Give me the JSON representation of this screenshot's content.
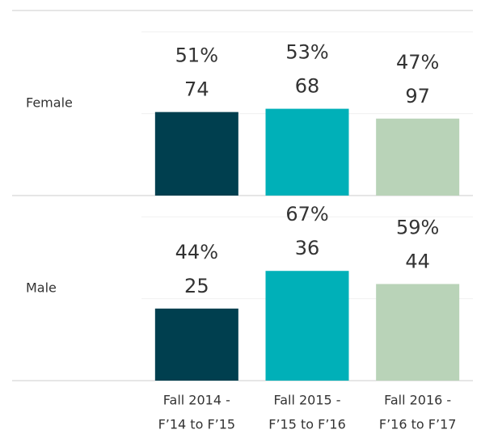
{
  "chart_data": {
    "type": "bar",
    "rows": [
      "Female",
      "Male"
    ],
    "categories": [
      [
        "Fall 2014 -",
        "F’14 to F’15"
      ],
      [
        "Fall 2015 -",
        "F’15 to F’16"
      ],
      [
        "Fall 2016 -",
        "F’16 to F’17"
      ]
    ],
    "colors": [
      "#003f4f",
      "#00b0b8",
      "#b9d3b8"
    ],
    "series": [
      {
        "name": "Female",
        "values": [
          51,
          53,
          47
        ],
        "value_labels": [
          "51%",
          "53%",
          "47%"
        ],
        "counts": [
          74,
          68,
          97
        ]
      },
      {
        "name": "Male",
        "values": [
          44,
          67,
          59
        ],
        "value_labels": [
          "44%",
          "67%",
          "59%"
        ],
        "counts": [
          25,
          36,
          44
        ]
      }
    ],
    "ylim": [
      0,
      113
    ],
    "yticks": [
      50,
      100
    ],
    "grid": true
  }
}
